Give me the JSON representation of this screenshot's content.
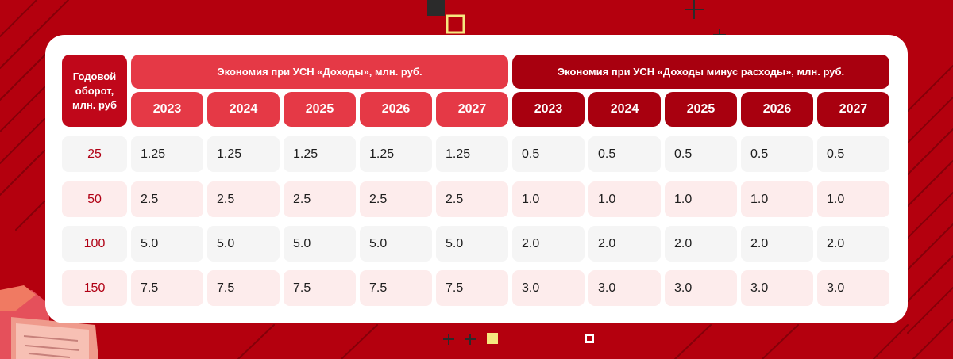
{
  "colors": {
    "background": "#b4000e",
    "card": "#ffffff",
    "group_a": "#e53946",
    "group_b": "#a8000f",
    "row_label": "#c0071a",
    "row_odd": "#f5f5f5",
    "row_even": "#fdecec",
    "row_key_text": "#b00014"
  },
  "table": {
    "row_header": "Годовой оборот, млн. руб",
    "group_a": {
      "title": "Экономия при УСН «Доходы», млн. руб.",
      "years": [
        "2023",
        "2024",
        "2025",
        "2026",
        "2027"
      ]
    },
    "group_b": {
      "title": "Экономия при УСН «Доходы минус расходы», млн. руб.",
      "years": [
        "2023",
        "2024",
        "2025",
        "2026",
        "2027"
      ]
    },
    "rows": [
      {
        "turnover": "25",
        "values": [
          "1.25",
          "1.25",
          "1.25",
          "1.25",
          "1.25",
          "0.5",
          "0.5",
          "0.5",
          "0.5",
          "0.5"
        ]
      },
      {
        "turnover": "50",
        "values": [
          "2.5",
          "2.5",
          "2.5",
          "2.5",
          "2.5",
          "1.0",
          "1.0",
          "1.0",
          "1.0",
          "1.0"
        ]
      },
      {
        "turnover": "100",
        "values": [
          "5.0",
          "5.0",
          "5.0",
          "5.0",
          "5.0",
          "2.0",
          "2.0",
          "2.0",
          "2.0",
          "2.0"
        ]
      },
      {
        "turnover": "150",
        "values": [
          "7.5",
          "7.5",
          "7.5",
          "7.5",
          "7.5",
          "3.0",
          "3.0",
          "3.0",
          "3.0",
          "3.0"
        ]
      }
    ]
  }
}
